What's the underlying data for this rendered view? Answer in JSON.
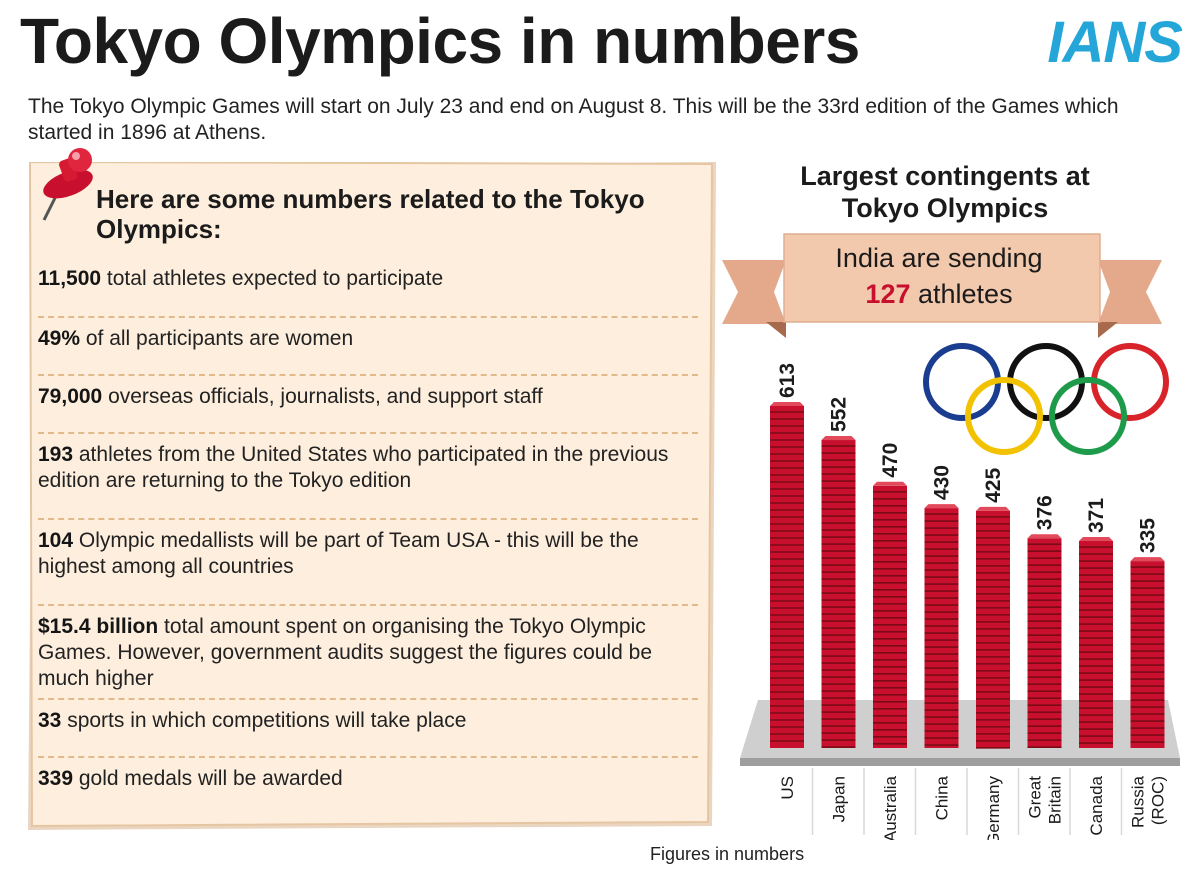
{
  "header": {
    "title": "Tokyo Olympics in numbers",
    "logo": "IANS",
    "intro": "The Tokyo Olympic Games will start on July 23 and end on August 8. This will be the 33rd edition of the Games which started in 1896 at Athens."
  },
  "notes": {
    "heading": "Here are some numbers related to the Tokyo Olympics:",
    "facts": [
      {
        "value": "11,500",
        "text": "total athletes expected to participate"
      },
      {
        "value": "49%",
        "text": "of all participants are women"
      },
      {
        "value": "79,000",
        "text": "overseas officials, journalists, and support staff"
      },
      {
        "value": "193",
        "text": "athletes from the United States who participated in the previous edition are returning to the Tokyo edition"
      },
      {
        "value": "104",
        "text": "Olympic medallists will be part of Team USA - this will be the highest among all countries"
      },
      {
        "value": "$15.4 billion",
        "text": "total amount spent on organising the Tokyo Olympic Games. However, government audits suggest the figures could be much higher"
      },
      {
        "value": "33",
        "text": "sports in which competitions will take place"
      },
      {
        "value": "339",
        "text": "gold medals will be awarded"
      }
    ]
  },
  "banner": {
    "line1": "India are sending",
    "number": "127",
    "unit": "athletes"
  },
  "footnote": "Figures in numbers",
  "colors": {
    "bar": "#c8102e",
    "bar_dark": "#7a0a16",
    "logo": "#25a6d9",
    "note_paper": "#fdeedd",
    "banner": "#f3c9ad",
    "rings": [
      "#1a3d8f",
      "#f2c200",
      "#111111",
      "#1e9b4a",
      "#d8232a"
    ]
  },
  "chart_data": {
    "type": "bar",
    "title": "Largest contingents at Tokyo Olympics",
    "categories": [
      "US",
      "Japan",
      "Australia",
      "China",
      "Germany",
      "Great Britain",
      "Canada",
      "Russia (ROC)"
    ],
    "category_lines": [
      [
        "US"
      ],
      [
        "Japan"
      ],
      [
        "Australia"
      ],
      [
        "China"
      ],
      [
        "Germany"
      ],
      [
        "Great",
        "Britain"
      ],
      [
        "Canada"
      ],
      [
        "Russia",
        "(ROC)"
      ]
    ],
    "values": [
      613,
      552,
      470,
      430,
      425,
      376,
      371,
      335
    ],
    "ylim": [
      0,
      650
    ],
    "data_labels": true,
    "grid": false,
    "icon": "olympic-rings-icon"
  }
}
